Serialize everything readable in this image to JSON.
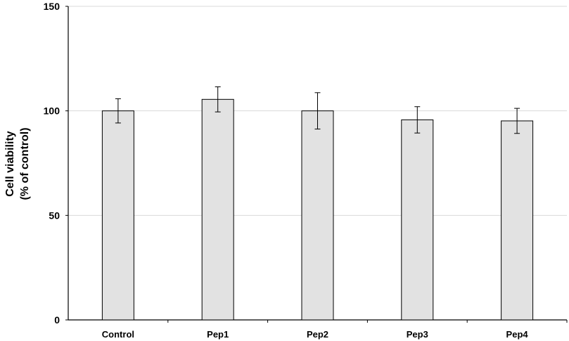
{
  "chart_data": {
    "type": "bar",
    "title": "",
    "xlabel": "",
    "ylabel_lines": [
      "Cell viability",
      "(% of control)"
    ],
    "ylim": [
      0,
      150
    ],
    "yticks": [
      0,
      50,
      100,
      150
    ],
    "grid": true,
    "categories": [
      "Control",
      "Pep1",
      "Pep2",
      "Pep3",
      "Pep4"
    ],
    "values": [
      100,
      105.5,
      100,
      95.7,
      95.2
    ],
    "errors": [
      5.8,
      6.0,
      8.7,
      6.3,
      6.0
    ],
    "colors": {
      "bar_fill": "#e2e2e2",
      "bar_stroke": "#000000",
      "grid": "#d9d9d9",
      "axis": "#000000"
    }
  }
}
